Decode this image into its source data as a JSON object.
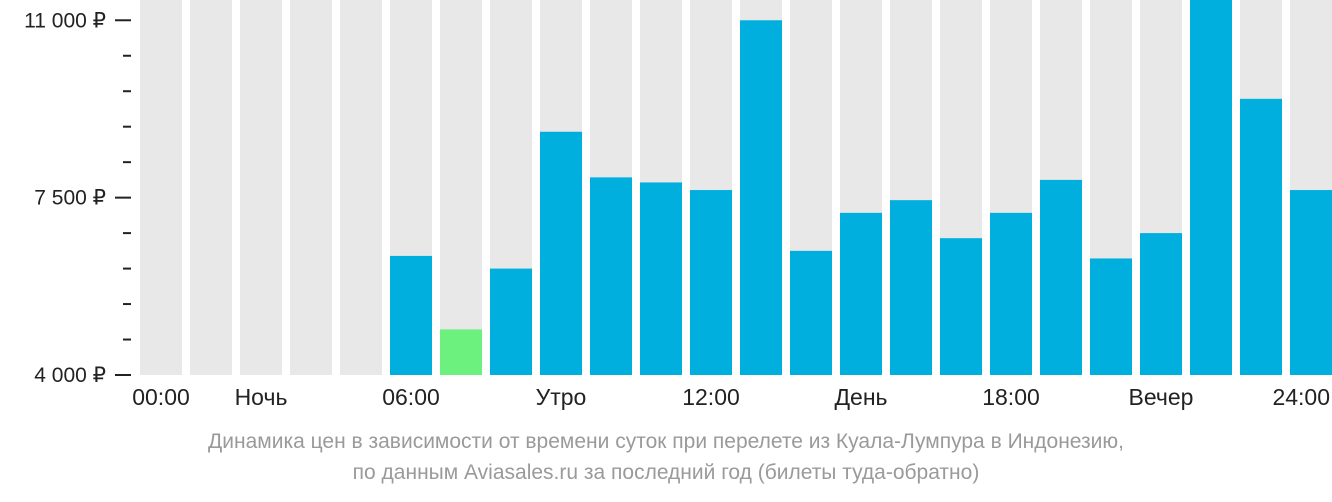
{
  "chart_data": {
    "type": "bar",
    "categories": [
      "00:00",
      "01:00",
      "02:00",
      "03:00",
      "04:00",
      "05:00",
      "06:00",
      "07:00",
      "08:00",
      "09:00",
      "10:00",
      "11:00",
      "12:00",
      "13:00",
      "14:00",
      "15:00",
      "16:00",
      "17:00",
      "18:00",
      "19:00",
      "20:00",
      "21:00",
      "22:00",
      "23:00"
    ],
    "values": [
      null,
      null,
      null,
      null,
      null,
      6350,
      4900,
      6100,
      8800,
      7900,
      7800,
      7650,
      11000,
      6450,
      7200,
      7450,
      6700,
      7200,
      7850,
      6300,
      6800,
      11400,
      9450,
      7650
    ],
    "ylim": [
      4000,
      11400
    ],
    "yticks": [
      {
        "value": 11000,
        "label": "11 000 ₽"
      },
      {
        "value": 7500,
        "label": "7 500 ₽"
      },
      {
        "value": 4000,
        "label": "4 000 ₽"
      }
    ],
    "minor_ytick_step": 700,
    "xtick_labels": [
      {
        "index": 0,
        "label": "00:00"
      },
      {
        "index": 2,
        "label": "Ночь"
      },
      {
        "index": 5,
        "label": "06:00"
      },
      {
        "index": 8,
        "label": "Утро"
      },
      {
        "index": 11,
        "label": "12:00"
      },
      {
        "index": 14,
        "label": "День"
      },
      {
        "index": 17,
        "label": "18:00"
      },
      {
        "index": 20,
        "label": "Вечер"
      },
      {
        "index": 23,
        "label": "24:00"
      }
    ],
    "highlight_index": 6,
    "colors": {
      "bar": "#00afde",
      "highlight": "#6cf07e",
      "background_column": "#e8e8e8",
      "axis": "#222222"
    },
    "caption": [
      "Динамика цен в зависимости от времени суток при перелете из Куала-Лумпура в Индонезию,",
      "по данным Aviasales.ru за последний год (билеты туда-обратно)"
    ]
  }
}
